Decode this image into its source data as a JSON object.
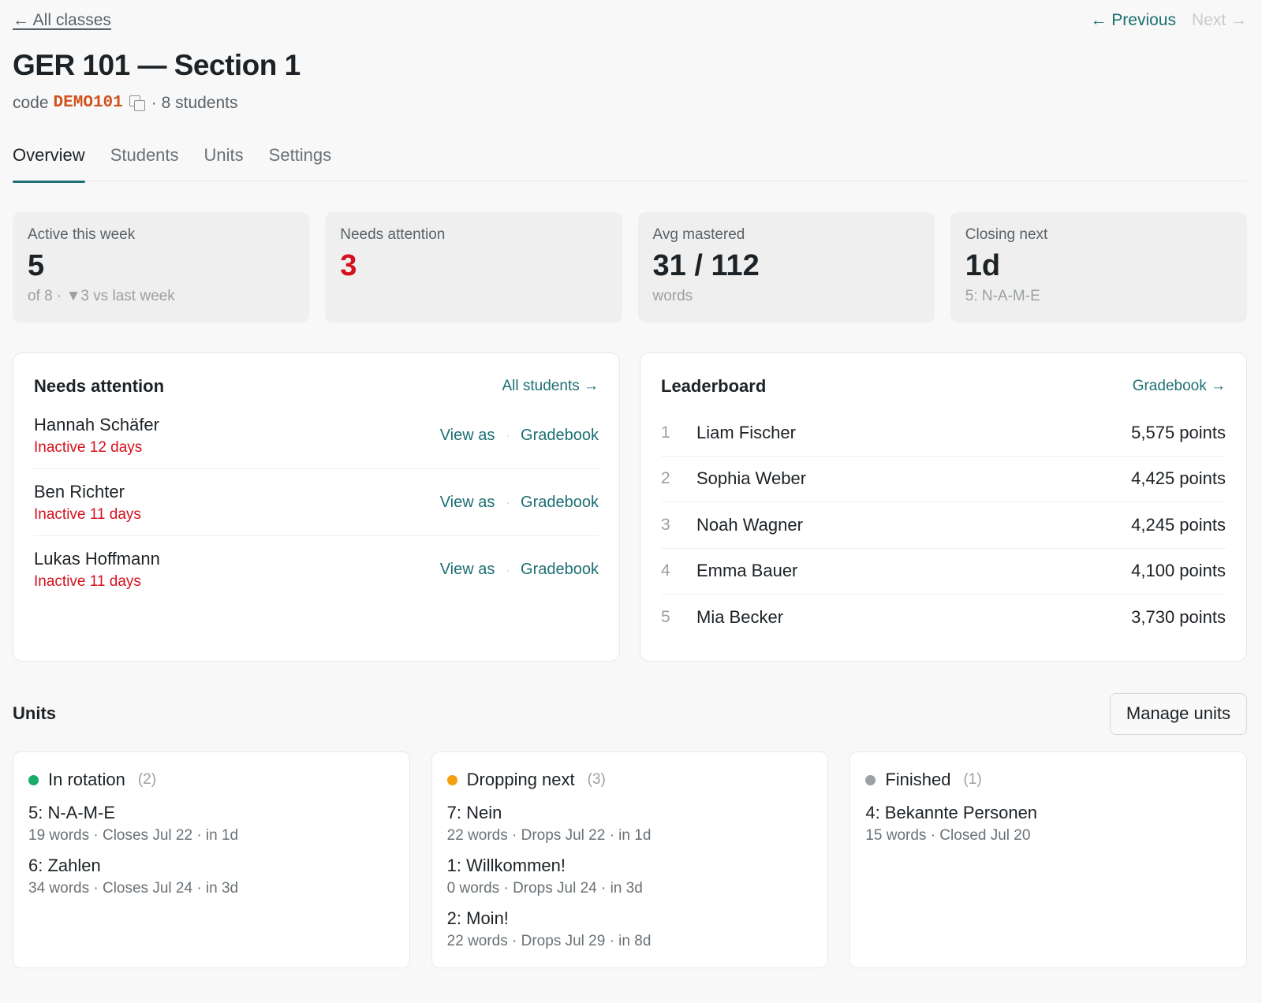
{
  "nav": {
    "back_label": "← All classes",
    "prev_label": "← Previous",
    "next_label": "Next →"
  },
  "header": {
    "title": "GER 101 — Section 1",
    "code_prefix": "code",
    "code": "DEMO101",
    "students": "· 8 students"
  },
  "tabs": [
    {
      "label": "Overview"
    },
    {
      "label": "Students"
    },
    {
      "label": "Units"
    },
    {
      "label": "Settings"
    }
  ],
  "stats": [
    {
      "label": "Active this week",
      "value": "5",
      "sub": "of 8 · ▼3 vs last week"
    },
    {
      "label": "Needs attention",
      "value": "3",
      "sub": ""
    },
    {
      "label": "Avg mastered",
      "value": "31 / 112",
      "sub": "words"
    },
    {
      "label": "Closing next",
      "value": "1d",
      "sub": "5: N-A-M-E"
    }
  ],
  "attention": {
    "title": "Needs attention",
    "link": "All students →",
    "view_as": "View as",
    "separator": "·",
    "gradebook": "Gradebook",
    "rows": [
      {
        "name": "Hannah Schäfer",
        "status": "Inactive 12 days"
      },
      {
        "name": "Ben Richter",
        "status": "Inactive 11 days"
      },
      {
        "name": "Lukas Hoffmann",
        "status": "Inactive 11 days"
      }
    ]
  },
  "leaderboard": {
    "title": "Leaderboard",
    "link": "Gradebook →",
    "rows": [
      {
        "rank": "1",
        "name": "Liam Fischer",
        "points": "5,575 points"
      },
      {
        "rank": "2",
        "name": "Sophia Weber",
        "points": "4,425 points"
      },
      {
        "rank": "3",
        "name": "Noah Wagner",
        "points": "4,245 points"
      },
      {
        "rank": "4",
        "name": "Emma Bauer",
        "points": "4,100 points"
      },
      {
        "rank": "5",
        "name": "Mia Becker",
        "points": "3,730 points"
      }
    ]
  },
  "units": {
    "title": "Units",
    "manage_label": "Manage units",
    "columns": [
      {
        "title": "In rotation",
        "count": "(2)",
        "color": "#1aaa6a",
        "items": [
          {
            "name": "5: N-A-M-E",
            "meta": "19 words · Closes Jul 22 · in 1d"
          },
          {
            "name": "6: Zahlen",
            "meta": "34 words · Closes Jul 24 · in 3d"
          }
        ]
      },
      {
        "title": "Dropping next",
        "count": "(3)",
        "color": "#f59e0b",
        "items": [
          {
            "name": "7: Nein",
            "meta": "22 words · Drops Jul 22 · in 1d"
          },
          {
            "name": "1: Willkommen!",
            "meta": "0 words · Drops Jul 24 · in 3d"
          },
          {
            "name": "2: Moin!",
            "meta": "22 words · Drops Jul 29 · in 8d"
          }
        ]
      },
      {
        "title": "Finished",
        "count": "(1)",
        "color": "#9aa0a4",
        "items": [
          {
            "name": "4: Bekannte Personen",
            "meta": "15 words · Closed Jul 20"
          }
        ]
      }
    ]
  }
}
